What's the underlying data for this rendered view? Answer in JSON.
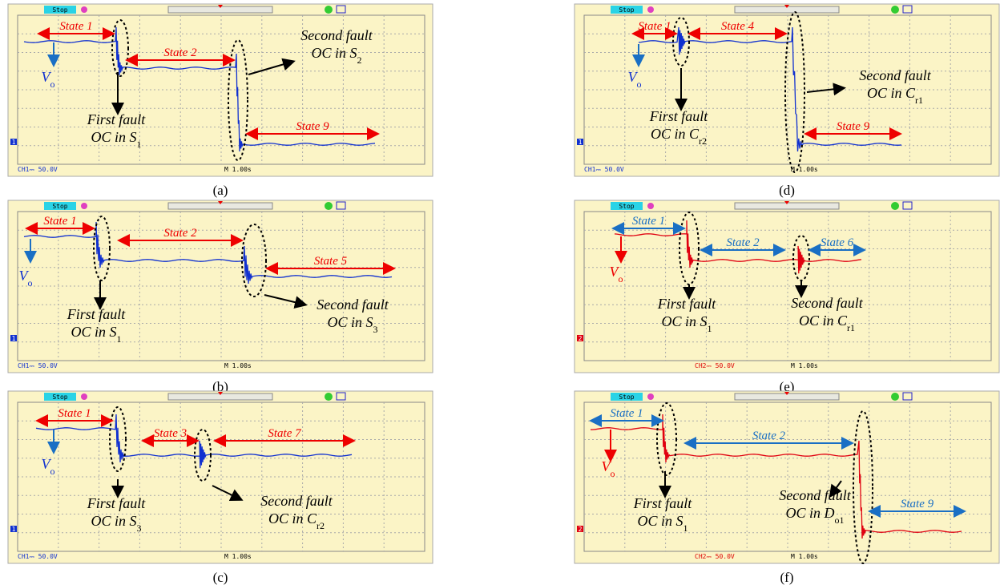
{
  "panels": [
    {
      "caption": "(a)",
      "status": "Stop",
      "channel_marker": "1",
      "channel": "CH1⎓ 50.0V",
      "timebase": "M 1.00s",
      "output": {
        "main": "V",
        "sub": "o"
      },
      "states": [
        "State 1",
        "State 2",
        "State 9"
      ],
      "first_fault": {
        "title": "First fault",
        "main": "OC in S",
        "sub": "1"
      },
      "second_fault": {
        "title": "Second fault",
        "main": "OC in S",
        "sub": "2"
      }
    },
    {
      "caption": "(b)",
      "status": "Stop",
      "channel_marker": "1",
      "channel": "CH1⎓ 50.0V",
      "timebase": "M 1.00s",
      "output": {
        "main": "V",
        "sub": "o"
      },
      "states": [
        "State 1",
        "State 2",
        "State 5"
      ],
      "first_fault": {
        "title": "First fault",
        "main": "OC in S",
        "sub": "1"
      },
      "second_fault": {
        "title": "Second fault",
        "main": "OC in S",
        "sub": "3"
      }
    },
    {
      "caption": "(c)",
      "status": "Stop",
      "channel_marker": "1",
      "channel": "CH1⎓ 50.0V",
      "timebase": "M 1.00s",
      "output": {
        "main": "V",
        "sub": "o"
      },
      "states": [
        "State 1",
        "State 3",
        "State 7"
      ],
      "first_fault": {
        "title": "First fault",
        "main": "OC in S",
        "sub": "3"
      },
      "second_fault": {
        "title": "Second fault",
        "main": "OC in C",
        "sub": "r2"
      }
    },
    {
      "caption": "(d)",
      "status": "Stop",
      "channel_marker": "1",
      "channel": "CH1⎓ 50.0V",
      "timebase": "M 1.00s",
      "output": {
        "main": "V",
        "sub": "o"
      },
      "states": [
        "State 1",
        "State 4",
        "State 9"
      ],
      "first_fault": {
        "title": "First fault",
        "main": "OC in C",
        "sub": "r2"
      },
      "second_fault": {
        "title": "Second fault",
        "main": "OC in C",
        "sub": "r1"
      }
    },
    {
      "caption": "(e)",
      "status": "Stop",
      "channel_marker": "2",
      "channel": "CH2⎓ 50.0V",
      "timebase": "M 1.00s",
      "output": {
        "main": "V",
        "sub": "o"
      },
      "states": [
        "State 1",
        "State 2",
        "State 6"
      ],
      "first_fault": {
        "title": "First fault",
        "main": "OC in S",
        "sub": "1"
      },
      "second_fault": {
        "title": "Second fault",
        "main": "OC in C",
        "sub": "r1"
      }
    },
    {
      "caption": "(f)",
      "status": "Stop",
      "channel_marker": "2",
      "channel": "CH2⎓ 50.0V",
      "timebase": "M 1.00s",
      "output": {
        "main": "V",
        "sub": "o"
      },
      "states": [
        "State 1",
        "State 2",
        "State 9"
      ],
      "first_fault": {
        "title": "First fault",
        "main": "OC in S",
        "sub": "1"
      },
      "second_fault": {
        "title": "Second fault",
        "main": "OC in D",
        "sub": "o1"
      }
    }
  ]
}
